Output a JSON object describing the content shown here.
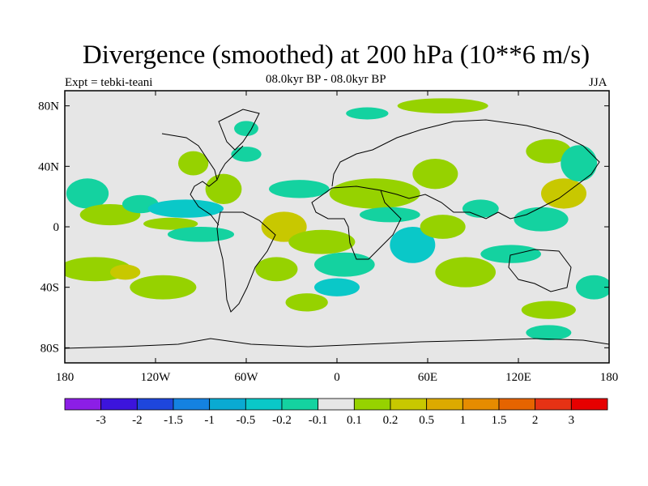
{
  "chart_data": {
    "type": "heatmap",
    "title": "Divergence (smoothed) at 200 hPa (10**6 m/s)",
    "experiment_label": "Expt = tebki-teani",
    "period_label": "08.0kyr BP - 08.0kyr BP",
    "season_label": "JJA",
    "x_range": [
      -180,
      180
    ],
    "y_range": [
      -90,
      90
    ],
    "x_ticks": [
      {
        "value": -180,
        "label": "180"
      },
      {
        "value": -120,
        "label": "120W"
      },
      {
        "value": -60,
        "label": "60W"
      },
      {
        "value": 0,
        "label": "0"
      },
      {
        "value": 60,
        "label": "60E"
      },
      {
        "value": 120,
        "label": "120E"
      },
      {
        "value": 180,
        "label": "180"
      }
    ],
    "y_ticks": [
      {
        "value": 80,
        "label": "80N"
      },
      {
        "value": 40,
        "label": "40N"
      },
      {
        "value": 0,
        "label": "0"
      },
      {
        "value": -40,
        "label": "40S"
      },
      {
        "value": -80,
        "label": "80S"
      }
    ],
    "colorbar": {
      "colors": [
        "#8c1ee6",
        "#3c14dc",
        "#1e46dc",
        "#1482e1",
        "#0aaad2",
        "#0ac8c8",
        "#14d2a0",
        "#e6e6e6",
        "#96d200",
        "#c8c800",
        "#dcaa00",
        "#e68c00",
        "#e66400",
        "#e63214",
        "#e60000"
      ],
      "labels": [
        "-3",
        "-2",
        "-1.5",
        "-1",
        "-0.5",
        "-0.2",
        "-0.1",
        "0.1",
        "0.2",
        "0.5",
        "1",
        "1.5",
        "2",
        "3"
      ]
    },
    "anomaly_patches": [
      {
        "lon": -160,
        "lat": -28,
        "rlon": 24,
        "rlat": 8,
        "level": 1
      },
      {
        "lon": -140,
        "lat": -30,
        "rlon": 10,
        "rlat": 5,
        "level": 2
      },
      {
        "lon": -115,
        "lat": -40,
        "rlon": 22,
        "rlat": 8,
        "level": 1
      },
      {
        "lon": -165,
        "lat": 22,
        "rlon": 14,
        "rlat": 10,
        "level": -1
      },
      {
        "lon": -150,
        "lat": 8,
        "rlon": 20,
        "rlat": 7,
        "level": 1
      },
      {
        "lon": -130,
        "lat": 15,
        "rlon": 12,
        "rlat": 6,
        "level": -1
      },
      {
        "lon": -100,
        "lat": 12,
        "rlon": 25,
        "rlat": 6,
        "level": -2
      },
      {
        "lon": -110,
        "lat": 2,
        "rlon": 18,
        "rlat": 4,
        "level": 1
      },
      {
        "lon": -90,
        "lat": -5,
        "rlon": 22,
        "rlat": 5,
        "level": -1
      },
      {
        "lon": -75,
        "lat": 25,
        "rlon": 12,
        "rlat": 10,
        "level": 1
      },
      {
        "lon": -95,
        "lat": 42,
        "rlon": 10,
        "rlat": 8,
        "level": 1
      },
      {
        "lon": -60,
        "lat": 48,
        "rlon": 10,
        "rlat": 5,
        "level": -1
      },
      {
        "lon": -60,
        "lat": 65,
        "rlon": 8,
        "rlat": 5,
        "level": -1
      },
      {
        "lon": -40,
        "lat": -28,
        "rlon": 14,
        "rlat": 8,
        "level": 1
      },
      {
        "lon": -35,
        "lat": 0,
        "rlon": 15,
        "rlat": 10,
        "level": 2
      },
      {
        "lon": -25,
        "lat": 25,
        "rlon": 20,
        "rlat": 6,
        "level": -1
      },
      {
        "lon": -10,
        "lat": -10,
        "rlon": 22,
        "rlat": 8,
        "level": 1
      },
      {
        "lon": 5,
        "lat": -25,
        "rlon": 20,
        "rlat": 8,
        "level": -1
      },
      {
        "lon": 0,
        "lat": -40,
        "rlon": 15,
        "rlat": 6,
        "level": -2
      },
      {
        "lon": -20,
        "lat": -50,
        "rlon": 14,
        "rlat": 6,
        "level": 1
      },
      {
        "lon": 25,
        "lat": 22,
        "rlon": 30,
        "rlat": 10,
        "level": 1
      },
      {
        "lon": 35,
        "lat": 8,
        "rlon": 20,
        "rlat": 5,
        "level": -1
      },
      {
        "lon": 50,
        "lat": -12,
        "rlon": 15,
        "rlat": 12,
        "level": -2
      },
      {
        "lon": 70,
        "lat": 0,
        "rlon": 15,
        "rlat": 8,
        "level": 1
      },
      {
        "lon": 85,
        "lat": -30,
        "rlon": 20,
        "rlat": 10,
        "level": 1
      },
      {
        "lon": 65,
        "lat": 35,
        "rlon": 15,
        "rlat": 10,
        "level": 1
      },
      {
        "lon": 95,
        "lat": 12,
        "rlon": 12,
        "rlat": 6,
        "level": -1
      },
      {
        "lon": 115,
        "lat": -18,
        "rlon": 20,
        "rlat": 6,
        "level": -1
      },
      {
        "lon": 135,
        "lat": 5,
        "rlon": 18,
        "rlat": 8,
        "level": -1
      },
      {
        "lon": 150,
        "lat": 22,
        "rlon": 15,
        "rlat": 10,
        "level": 2
      },
      {
        "lon": 140,
        "lat": 50,
        "rlon": 15,
        "rlat": 8,
        "level": 1
      },
      {
        "lon": 160,
        "lat": 42,
        "rlon": 12,
        "rlat": 12,
        "level": -1
      },
      {
        "lon": 170,
        "lat": -40,
        "rlon": 12,
        "rlat": 8,
        "level": -1
      },
      {
        "lon": 140,
        "lat": -55,
        "rlon": 18,
        "rlat": 6,
        "level": 1
      },
      {
        "lon": 70,
        "lat": 80,
        "rlon": 30,
        "rlat": 5,
        "level": 1
      },
      {
        "lon": 20,
        "lat": 75,
        "rlon": 14,
        "rlat": 4,
        "level": -1
      },
      {
        "lon": 140,
        "lat": -70,
        "rlon": 15,
        "rlat": 5,
        "level": -1
      }
    ]
  }
}
